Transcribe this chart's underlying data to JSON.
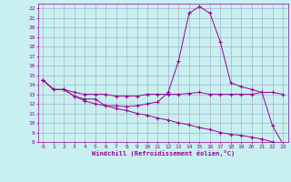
{
  "xlabel": "Windchill (Refroidissement éolien,°C)",
  "bg_color": "#c8f0f0",
  "grid_color": "#a0a0c0",
  "line_color": "#990099",
  "xlim": [
    -0.5,
    23.5
  ],
  "ylim": [
    8,
    22.5
  ],
  "yticks": [
    8,
    9,
    10,
    11,
    12,
    13,
    14,
    15,
    16,
    17,
    18,
    19,
    20,
    21,
    22
  ],
  "xticks": [
    0,
    1,
    2,
    3,
    4,
    5,
    6,
    7,
    8,
    9,
    10,
    11,
    12,
    13,
    14,
    15,
    16,
    17,
    18,
    19,
    20,
    21,
    22,
    23
  ],
  "line1_x": [
    0,
    1,
    2,
    3,
    4,
    5,
    6,
    7,
    8,
    9,
    10,
    11,
    12,
    13,
    14,
    15,
    16,
    17,
    18,
    19,
    20,
    21,
    22,
    23
  ],
  "line1_y": [
    14.5,
    13.5,
    13.5,
    12.8,
    12.5,
    12.5,
    11.8,
    11.8,
    11.7,
    11.8,
    12.0,
    12.2,
    13.2,
    16.5,
    21.5,
    22.2,
    21.5,
    18.5,
    14.2,
    13.8,
    13.5,
    13.2,
    9.7,
    7.8
  ],
  "line2_x": [
    0,
    1,
    2,
    3,
    4,
    5,
    6,
    7,
    8,
    9,
    10,
    11,
    12,
    13,
    14,
    15,
    16,
    17,
    18,
    19,
    20,
    21,
    22,
    23
  ],
  "line2_y": [
    14.5,
    13.5,
    13.5,
    13.2,
    13.0,
    13.0,
    13.0,
    12.8,
    12.8,
    12.8,
    13.0,
    13.0,
    13.0,
    13.0,
    13.1,
    13.2,
    13.0,
    13.0,
    13.0,
    13.0,
    13.0,
    13.2,
    13.2,
    13.0
  ],
  "line3_x": [
    0,
    1,
    2,
    3,
    4,
    5,
    6,
    7,
    8,
    9,
    10,
    11,
    12,
    13,
    14,
    15,
    16,
    17,
    18,
    19,
    20,
    21,
    22,
    23
  ],
  "line3_y": [
    14.5,
    13.5,
    13.5,
    12.8,
    12.3,
    12.0,
    11.8,
    11.5,
    11.3,
    11.0,
    10.8,
    10.5,
    10.3,
    10.0,
    9.8,
    9.5,
    9.3,
    9.0,
    8.8,
    8.7,
    8.5,
    8.3,
    8.0,
    7.8
  ]
}
